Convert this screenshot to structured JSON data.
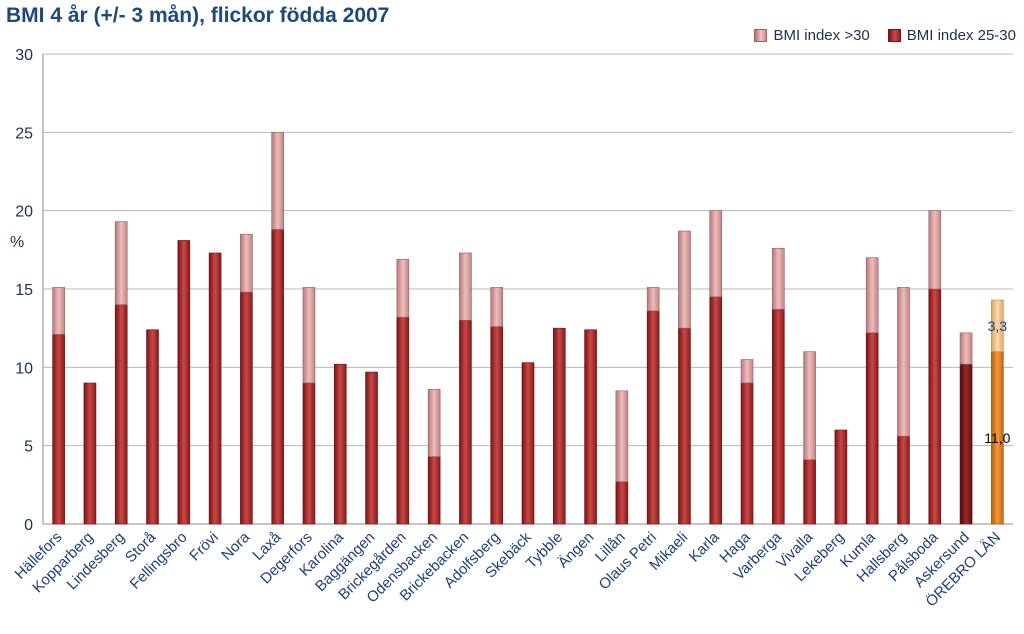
{
  "chart_data": {
    "type": "bar",
    "stacked": true,
    "title": "BMI 4 år (+/- 3 mån), flickor födda 2007",
    "ylabel": "%",
    "ylim": [
      0,
      30
    ],
    "yticks": [
      0,
      5,
      10,
      15,
      20,
      25,
      30
    ],
    "grid": true,
    "legend_position": "top-right",
    "categories": [
      "Hällefors",
      "Kopparberg",
      "Lindesberg",
      "Storå",
      "Fellingsbro",
      "Frövi",
      "Nora",
      "Laxå",
      "Degerfors",
      "Karolina",
      "Baggängen",
      "Brickegården",
      "Odensbacken",
      "Brickebacken",
      "Adolfsberg",
      "Skebäck",
      "Tybble",
      "Ängen",
      "Lillån",
      "Olaus Petri",
      "Mikaeli",
      "Karla",
      "Haga",
      "Varberga",
      "Vivalla",
      "Lekeberg",
      "Kumla",
      "Hallsberg",
      "Pålsboda",
      "Askersund",
      "ÖREBRO LÄN"
    ],
    "series": [
      {
        "name": "BMI index 25-30",
        "color": "#b22f2f",
        "values": [
          12.1,
          9.0,
          14.0,
          12.4,
          18.1,
          17.3,
          14.8,
          18.8,
          9.0,
          10.2,
          9.7,
          13.2,
          4.3,
          13.0,
          12.6,
          10.3,
          12.5,
          12.4,
          2.7,
          13.6,
          12.5,
          14.5,
          9.0,
          13.7,
          4.1,
          6.0,
          12.2,
          5.6,
          15.0,
          10.2,
          11.0
        ]
      },
      {
        "name": "BMI index >30",
        "color": "#e8a9a9",
        "values": [
          3.0,
          0,
          5.3,
          0,
          0,
          0,
          3.7,
          6.2,
          6.1,
          0,
          0,
          3.7,
          4.3,
          4.3,
          2.5,
          0,
          0,
          0,
          5.8,
          1.5,
          6.2,
          5.5,
          1.5,
          3.9,
          6.9,
          0,
          4.8,
          9.5,
          5.0,
          2.0,
          3.3
        ]
      }
    ],
    "highlight_category": "ÖREBRO LÄN",
    "highlight_colors": {
      "BMI index 25-30": "#e07e1a",
      "BMI index >30": "#f4c48a"
    },
    "dark_category": "Askersund",
    "data_labels": [
      {
        "category": "ÖREBRO LÄN",
        "series": "BMI index >30",
        "text": "3,3"
      },
      {
        "category": "ÖREBRO LÄN",
        "series": "BMI index 25-30",
        "text": "11,0"
      }
    ]
  }
}
